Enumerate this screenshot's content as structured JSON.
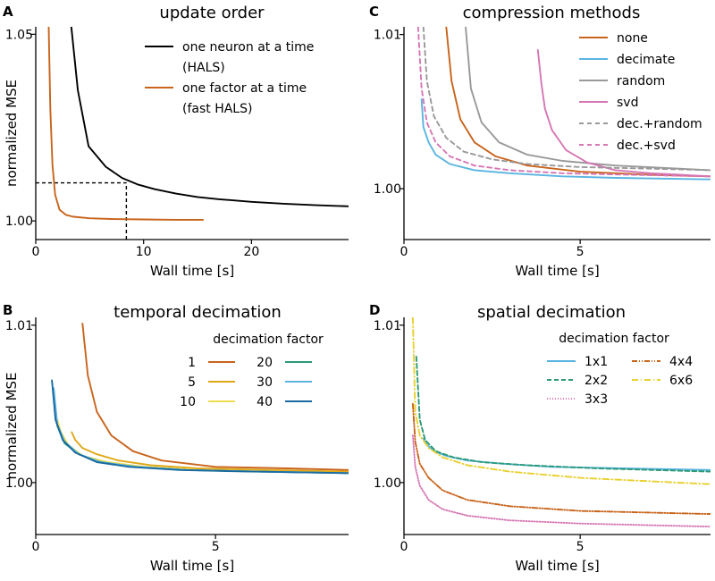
{
  "figure": {
    "panels": [
      {
        "letter": "A",
        "title": "update order",
        "xlabel": "Wall time [s]",
        "ylabel": "normalized MSE",
        "xlim": [
          0,
          29
        ],
        "ylim": [
          0.995,
          1.052
        ],
        "xticks": [
          {
            "v": 0,
            "label": "0"
          },
          {
            "v": 10,
            "label": "10"
          },
          {
            "v": 20,
            "label": "20"
          }
        ],
        "yticks": [
          {
            "v": 1.0,
            "label": "1.00"
          },
          {
            "v": 1.05,
            "label": "1.05"
          }
        ],
        "legend": {
          "title": "",
          "position": "top-right",
          "columns": 1
        },
        "series": [
          {
            "name": "one neuron at a time\n(HALS)",
            "color": "#000000",
            "dash": "",
            "x": [
              3.3,
              3.9,
              4.9,
              6.5,
              8.0,
              9.5,
              11,
              13,
              15,
              17,
              20,
              23,
              26,
              29
            ],
            "y": [
              1.052,
              1.035,
              1.02,
              1.0145,
              1.0115,
              1.0097,
              1.0085,
              1.0073,
              1.0064,
              1.0058,
              1.0051,
              1.0046,
              1.0042,
              1.0039
            ]
          },
          {
            "name": "one factor at a time\n(fast HALS)",
            "color": "#c8641c",
            "dash": "",
            "x": [
              1.2,
              1.35,
              1.55,
              1.8,
              2.2,
              2.8,
              3.5,
              5,
              7,
              10,
              13,
              15.5
            ],
            "y": [
              1.052,
              1.03,
              1.015,
              1.007,
              1.003,
              1.0016,
              1.0011,
              1.0007,
              1.0005,
              1.0004,
              1.0003,
              1.0003
            ]
          }
        ],
        "guides": [
          {
            "x": [
              0,
              8.4
            ],
            "y": [
              1.0102,
              1.0102
            ]
          },
          {
            "x": [
              8.4,
              8.4
            ],
            "y": [
              0.995,
              1.0102
            ]
          }
        ]
      },
      {
        "letter": "C",
        "title": "compression methods",
        "xlabel": "Wall time [s]",
        "ylabel": "",
        "xlim": [
          0,
          8.7
        ],
        "ylim": [
          0.9967,
          1.0105
        ],
        "xticks": [
          {
            "v": 0,
            "label": "0"
          },
          {
            "v": 5,
            "label": "5"
          }
        ],
        "yticks": [
          {
            "v": 1.0,
            "label": "1.00"
          },
          {
            "v": 1.01,
            "label": "1.01"
          }
        ],
        "legend": {
          "title": "",
          "position": "top-right",
          "columns": 1
        },
        "series": [
          {
            "name": "none",
            "color": "#c8641c",
            "dash": "",
            "x": [
              1.2,
              1.35,
              1.6,
              2.0,
              2.6,
              3.5,
              5,
              7,
              8.7
            ],
            "y": [
              1.0105,
              1.007,
              1.0045,
              1.003,
              1.0021,
              1.0015,
              1.0011,
              1.0009,
              1.0008
            ]
          },
          {
            "name": "decimate",
            "color": "#5ab4e0",
            "dash": "",
            "x": [
              0.5,
              0.55,
              0.7,
              0.9,
              1.3,
              2.0,
              3,
              4.5,
              6,
              8.7
            ],
            "y": [
              1.0058,
              1.004,
              1.003,
              1.0022,
              1.0016,
              1.0012,
              1.001,
              1.0008,
              1.0007,
              1.0006
            ]
          },
          {
            "name": "random",
            "color": "#999999",
            "dash": "",
            "x": [
              1.75,
              1.9,
              2.2,
              2.7,
              3.5,
              4.5,
              6,
              8.7
            ],
            "y": [
              1.0105,
              1.0065,
              1.0043,
              1.003,
              1.0022,
              1.0018,
              1.0015,
              1.0012
            ]
          },
          {
            "name": "svd",
            "color": "#d676b4",
            "dash": "",
            "x": [
              3.8,
              3.9,
              4.0,
              4.2,
              4.6,
              5.2,
              6.0,
              7.0,
              8.7
            ],
            "y": [
              1.009,
              1.0068,
              1.0052,
              1.0038,
              1.0025,
              1.0017,
              1.0012,
              1.001,
              1.0008
            ]
          },
          {
            "name": "dec.+random",
            "color": "#999999",
            "dash": "5,4",
            "x": [
              0.55,
              0.65,
              0.85,
              1.2,
              1.7,
              2.5,
              3.5,
              5,
              7,
              8.7
            ],
            "y": [
              1.0105,
              1.007,
              1.0047,
              1.0033,
              1.0024,
              1.0019,
              1.0016,
              1.0014,
              1.0013,
              1.0012
            ]
          },
          {
            "name": "dec.+svd",
            "color": "#d676b4",
            "dash": "5,4",
            "x": [
              0.4,
              0.5,
              0.65,
              0.9,
              1.3,
              2.0,
              3.0,
              4.5,
              6.5,
              8.7
            ],
            "y": [
              1.0105,
              1.0065,
              1.0043,
              1.003,
              1.0021,
              1.0015,
              1.0012,
              1.001,
              1.0009,
              1.0008
            ]
          }
        ]
      },
      {
        "letter": "B",
        "title": "temporal decimation",
        "xlabel": "Wall time [s]",
        "ylabel": "normalized MSE",
        "xlim": [
          0,
          8.7
        ],
        "ylim": [
          0.9967,
          1.0105
        ],
        "xticks": [
          {
            "v": 0,
            "label": "0"
          },
          {
            "v": 5,
            "label": "5"
          }
        ],
        "yticks": [
          {
            "v": 1.0,
            "label": "1.00"
          },
          {
            "v": 1.01,
            "label": "1.01"
          }
        ],
        "legend": {
          "title": "decimation factor",
          "position": "top-right",
          "columns": 2
        },
        "series": [
          {
            "name": "1",
            "color": "#c8641c",
            "dash": "",
            "x": [
              1.3,
              1.45,
              1.7,
              2.1,
              2.7,
              3.5,
              5,
              7,
              8.7
            ],
            "y": [
              1.0101,
              1.0068,
              1.0045,
              1.003,
              1.002,
              1.0014,
              1.001,
              1.0009,
              1.0008
            ]
          },
          {
            "name": "5",
            "color": "#e0a818",
            "dash": "",
            "x": [
              1.0,
              1.1,
              1.3,
              1.7,
              2.3,
              3.2,
              4.5,
              6.5,
              8.7
            ],
            "y": [
              1.0032,
              1.0027,
              1.0022,
              1.0018,
              1.0014,
              1.0011,
              1.0009,
              1.0008,
              1.0007
            ]
          },
          {
            "name": "10",
            "color": "#f0dc50",
            "dash": "",
            "x": [
              0.6,
              0.7,
              0.9,
              1.3,
              2.0,
              3.0,
              4.5,
              6.5,
              8.7
            ],
            "y": [
              1.004,
              1.0032,
              1.0024,
              1.0017,
              1.0013,
              1.001,
              1.0008,
              1.0007,
              1.0006
            ]
          },
          {
            "name": "20",
            "color": "#2a9a78",
            "dash": "",
            "x": [
              0.5,
              0.6,
              0.8,
              1.2,
              1.8,
              2.8,
              4.2,
              6.2,
              8.7
            ],
            "y": [
              1.0055,
              1.0036,
              1.0025,
              1.0018,
              1.0013,
              1.001,
              1.0008,
              1.0007,
              1.0006
            ]
          },
          {
            "name": "30",
            "color": "#5ab4e0",
            "dash": "",
            "x": [
              0.5,
              0.6,
              0.8,
              1.2,
              1.8,
              2.8,
              4.2,
              6.2,
              8.7
            ],
            "y": [
              1.006,
              1.0037,
              1.0026,
              1.0018,
              1.0013,
              1.001,
              1.0008,
              1.0007,
              1.0006
            ]
          },
          {
            "name": "40",
            "color": "#1a6aa0",
            "dash": "",
            "x": [
              0.45,
              0.55,
              0.75,
              1.1,
              1.7,
              2.6,
              4.0,
              6.0,
              8.7
            ],
            "y": [
              1.0065,
              1.004,
              1.0027,
              1.0019,
              1.0013,
              1.001,
              1.0008,
              1.0007,
              1.0006
            ]
          }
        ]
      },
      {
        "letter": "D",
        "title": "spatial decimation",
        "xlabel": "Wall time [s]",
        "ylabel": "",
        "xlim": [
          0,
          8.7
        ],
        "ylim": [
          0.9967,
          1.0105
        ],
        "xticks": [
          {
            "v": 0,
            "label": "0"
          },
          {
            "v": 5,
            "label": "5"
          }
        ],
        "yticks": [
          {
            "v": 1.0,
            "label": "1.00"
          },
          {
            "v": 1.01,
            "label": "1.01"
          }
        ],
        "legend": {
          "title": "decimation factor",
          "position": "top-right",
          "columns": 2
        },
        "series": [
          {
            "name": "1x1",
            "color": "#5ab4e0",
            "dash": "",
            "x": [
              0.55,
              0.65,
              0.85,
              1.2,
              1.8,
              2.8,
              4.2,
              6.2,
              8.7
            ],
            "y": [
              1.0028,
              1.0024,
              1.002,
              1.0017,
              1.0014,
              1.0012,
              1.001,
              1.0009,
              1.0008
            ]
          },
          {
            "name": "2x2",
            "color": "#2a9a78",
            "dash": "5,3",
            "x": [
              0.35,
              0.45,
              0.6,
              0.9,
              1.4,
              2.2,
              3.5,
              5.5,
              8.7
            ],
            "y": [
              1.008,
              1.004,
              1.0027,
              1.002,
              1.0016,
              1.0013,
              1.0011,
              1.0009,
              1.0007
            ]
          },
          {
            "name": "3x3",
            "color": "#d676b4",
            "dash": "1,2",
            "x": [
              0.25,
              0.32,
              0.45,
              0.7,
              1.1,
              1.8,
              3.0,
              5.0,
              8.7
            ],
            "y": [
              1.003,
              1.001,
              0.9998,
              0.9989,
              0.9983,
              0.9979,
              0.9976,
              0.9974,
              0.9972
            ]
          },
          {
            "name": "4x4",
            "color": "#c8641c",
            "dash": "6,2,1,2,1,2",
            "x": [
              0.25,
              0.32,
              0.45,
              0.7,
              1.1,
              1.8,
              3.0,
              5.0,
              8.7
            ],
            "y": [
              1.005,
              1.0026,
              1.0012,
              1.0003,
              0.9995,
              0.9989,
              0.9985,
              0.9982,
              0.998
            ]
          },
          {
            "name": "6x6",
            "color": "#e8d030",
            "dash": "7,3,1,3",
            "x": [
              0.25,
              0.32,
              0.45,
              0.7,
              1.1,
              1.8,
              3.0,
              5.0,
              8.7
            ],
            "y": [
              1.0105,
              1.0045,
              1.003,
              1.0022,
              1.0016,
              1.0011,
              1.0007,
              1.0003,
              0.9999
            ]
          }
        ]
      }
    ]
  },
  "chart_data": [
    {
      "type": "line",
      "panel": "A",
      "title": "update order",
      "xlabel": "Wall time [s]",
      "ylabel": "normalized MSE",
      "xlim": [
        0,
        29
      ],
      "ylim": [
        0.995,
        1.052
      ]
    },
    {
      "type": "line",
      "panel": "C",
      "title": "compression methods",
      "xlabel": "Wall time [s]",
      "ylabel": "",
      "xlim": [
        0,
        8.7
      ],
      "ylim": [
        0.9967,
        1.0105
      ]
    },
    {
      "type": "line",
      "panel": "B",
      "title": "temporal decimation",
      "xlabel": "Wall time [s]",
      "ylabel": "normalized MSE",
      "xlim": [
        0,
        8.7
      ],
      "ylim": [
        0.9967,
        1.0105
      ]
    },
    {
      "type": "line",
      "panel": "D",
      "title": "spatial decimation",
      "xlabel": "Wall time [s]",
      "ylabel": "",
      "xlim": [
        0,
        8.7
      ],
      "ylim": [
        0.9967,
        1.0105
      ]
    }
  ]
}
